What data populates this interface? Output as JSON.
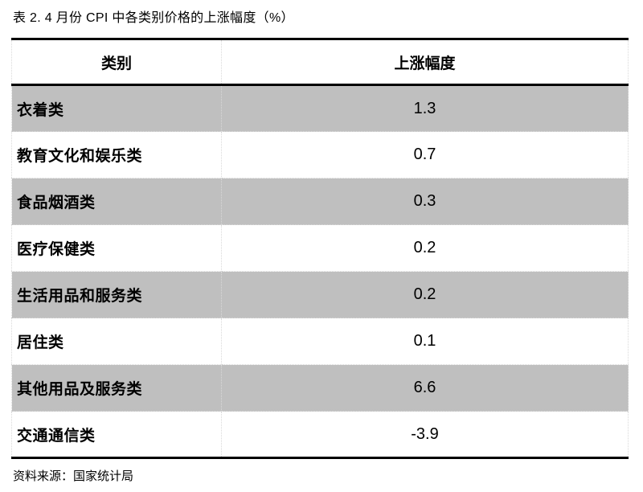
{
  "title": "表 2. 4 月份 CPI 中各类别价格的上涨幅度（%）",
  "table": {
    "headers": {
      "category": "类别",
      "value": "上涨幅度"
    },
    "rows": [
      {
        "category": "衣着类",
        "value": "1.3"
      },
      {
        "category": "教育文化和娱乐类",
        "value": "0.7"
      },
      {
        "category": "食品烟酒类",
        "value": "0.3"
      },
      {
        "category": "医疗保健类",
        "value": "0.2"
      },
      {
        "category": "生活用品和服务类",
        "value": "0.2"
      },
      {
        "category": "居住类",
        "value": "0.1"
      },
      {
        "category": "其他用品及服务类",
        "value": "6.6"
      },
      {
        "category": "交通通信类",
        "value": "-3.9"
      }
    ]
  },
  "footer": {
    "source_label": "资料来源：国家统计局"
  },
  "colors": {
    "row_shade": "#bfbfbf",
    "row_plain": "#ffffff",
    "border_strong": "#000000",
    "border_light": "#d9d9d9",
    "text": "#000000",
    "background": "#ffffff"
  }
}
